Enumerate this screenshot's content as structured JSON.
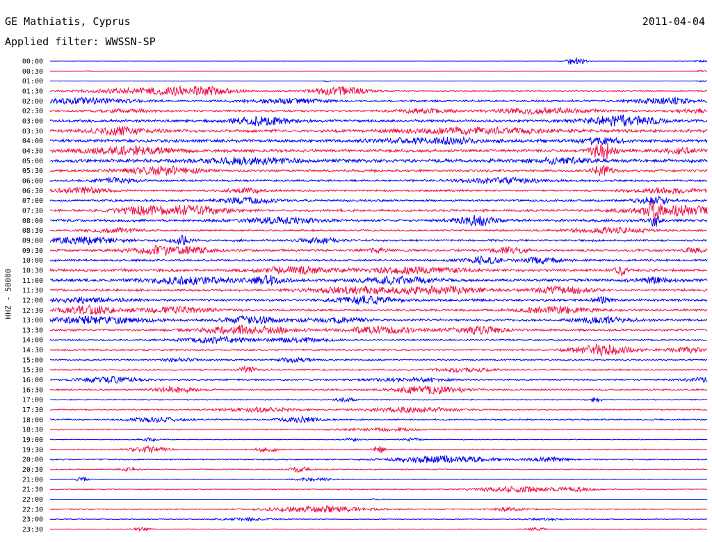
{
  "header": {
    "station": "GE Mathiatis, Cyprus",
    "date": "2011-04-04",
    "filter": "Applied filter: WWSSN-SP"
  },
  "colors": {
    "trace_a": "#0000ee",
    "trace_b": "#ee1144",
    "text": "#000000",
    "background": "#ffffff"
  },
  "chart_data": {
    "type": "line",
    "title": "GE Mathiatis, Cyprus",
    "subtitle": "Applied filter: WWSSN-SP",
    "date": "2011-04-04",
    "ylabel": "HHZ - 50000",
    "xlabel": "",
    "grid": false,
    "row_interval_minutes": 30,
    "row_times": [
      "00:00",
      "00:30",
      "01:00",
      "01:30",
      "02:00",
      "02:30",
      "03:00",
      "03:30",
      "04:00",
      "04:30",
      "05:00",
      "05:30",
      "06:00",
      "06:30",
      "07:00",
      "07:30",
      "08:00",
      "08:30",
      "09:00",
      "09:30",
      "10:00",
      "10:30",
      "11:00",
      "11:30",
      "12:00",
      "12:30",
      "13:00",
      "13:30",
      "14:00",
      "14:30",
      "15:00",
      "15:30",
      "16:00",
      "16:30",
      "17:00",
      "17:30",
      "18:00",
      "18:30",
      "19:00",
      "19:30",
      "20:00",
      "20:30",
      "21:00",
      "21:30",
      "22:00",
      "22:30",
      "23:00",
      "23:30"
    ],
    "trace_colors": [
      "#0000ee",
      "#ee1144"
    ],
    "series": [
      {
        "noise": 0.05,
        "events": [
          [
            0.8,
            1.5,
            0.01
          ],
          [
            0.99,
            0.3,
            0.01
          ]
        ]
      },
      {
        "noise": 0.03,
        "events": [
          [
            0.06,
            0.2,
            0.003
          ],
          [
            0.99,
            0.3,
            0.006
          ]
        ]
      },
      {
        "noise": 0.05,
        "events": [
          [
            0.42,
            0.3,
            0.003
          ],
          [
            0.99,
            0.3,
            0.006
          ]
        ]
      },
      {
        "noise": 0.22,
        "events": [
          [
            0.14,
            0.9,
            0.06
          ],
          [
            0.23,
            1.2,
            0.04
          ],
          [
            0.44,
            1.5,
            0.03
          ]
        ]
      },
      {
        "noise": 0.4,
        "events": [
          [
            0.05,
            0.9,
            0.05
          ],
          [
            0.36,
            0.7,
            0.04
          ],
          [
            0.94,
            1.0,
            0.03
          ]
        ]
      },
      {
        "noise": 0.35,
        "events": [
          [
            0.12,
            0.5,
            0.03
          ],
          [
            0.57,
            0.7,
            0.03
          ],
          [
            0.75,
            1.0,
            0.05
          ],
          [
            0.98,
            0.7,
            0.02
          ]
        ]
      },
      {
        "noise": 0.5,
        "events": [
          [
            0.32,
            1.4,
            0.03
          ],
          [
            0.87,
            1.6,
            0.04
          ]
        ]
      },
      {
        "noise": 0.55,
        "events": [
          [
            0.11,
            1.2,
            0.03
          ],
          [
            0.65,
            0.9,
            0.08
          ]
        ]
      },
      {
        "noise": 0.6,
        "events": [
          [
            0.58,
            1.0,
            0.05
          ],
          [
            0.84,
            1.1,
            0.02
          ]
        ]
      },
      {
        "noise": 0.55,
        "events": [
          [
            0.12,
            1.2,
            0.05
          ],
          [
            0.84,
            3.0,
            0.012
          ],
          [
            0.96,
            0.8,
            0.02
          ]
        ]
      },
      {
        "noise": 0.65,
        "events": [
          [
            0.3,
            1.0,
            0.05
          ],
          [
            0.78,
            0.8,
            0.03
          ]
        ]
      },
      {
        "noise": 0.45,
        "events": [
          [
            0.17,
            1.3,
            0.04
          ],
          [
            0.84,
            1.8,
            0.01
          ]
        ]
      },
      {
        "noise": 0.4,
        "events": [
          [
            0.1,
            0.9,
            0.02
          ],
          [
            0.69,
            0.9,
            0.04
          ]
        ]
      },
      {
        "noise": 0.35,
        "events": [
          [
            0.05,
            1.0,
            0.03
          ],
          [
            0.3,
            0.8,
            0.02
          ],
          [
            0.94,
            0.8,
            0.04
          ]
        ]
      },
      {
        "noise": 0.4,
        "events": [
          [
            0.3,
            0.9,
            0.03
          ],
          [
            0.92,
            1.2,
            0.02
          ]
        ]
      },
      {
        "noise": 0.45,
        "events": [
          [
            0.14,
            1.2,
            0.03
          ],
          [
            0.22,
            1.4,
            0.04
          ],
          [
            0.92,
            3.0,
            0.006
          ],
          [
            0.95,
            1.5,
            0.05
          ]
        ]
      },
      {
        "noise": 0.5,
        "events": [
          [
            0.35,
            1.0,
            0.04
          ],
          [
            0.65,
            1.6,
            0.02
          ],
          [
            0.92,
            2.0,
            0.006
          ]
        ]
      },
      {
        "noise": 0.35,
        "events": [
          [
            0.1,
            0.7,
            0.03
          ],
          [
            0.85,
            0.9,
            0.04
          ]
        ]
      },
      {
        "noise": 0.4,
        "events": [
          [
            0.05,
            1.2,
            0.04
          ],
          [
            0.2,
            1.4,
            0.01
          ],
          [
            0.41,
            0.9,
            0.02
          ]
        ]
      },
      {
        "noise": 0.45,
        "events": [
          [
            0.18,
            1.5,
            0.04
          ],
          [
            0.5,
            0.8,
            0.01
          ],
          [
            0.7,
            0.9,
            0.02
          ],
          [
            0.98,
            0.9,
            0.01
          ]
        ]
      },
      {
        "noise": 0.4,
        "events": [
          [
            0.66,
            1.3,
            0.02
          ],
          [
            0.75,
            1.1,
            0.02
          ]
        ]
      },
      {
        "noise": 0.5,
        "events": [
          [
            0.37,
            1.2,
            0.04
          ],
          [
            0.55,
            1.0,
            0.05
          ],
          [
            0.87,
            1.6,
            0.006
          ]
        ]
      },
      {
        "noise": 0.55,
        "events": [
          [
            0.21,
            1.2,
            0.04
          ],
          [
            0.33,
            1.3,
            0.02
          ],
          [
            0.53,
            1.1,
            0.04
          ],
          [
            0.92,
            0.8,
            0.02
          ]
        ]
      },
      {
        "noise": 0.45,
        "events": [
          [
            0.47,
            1.0,
            0.05
          ],
          [
            0.6,
            1.5,
            0.04
          ],
          [
            0.78,
            1.2,
            0.03
          ]
        ]
      },
      {
        "noise": 0.45,
        "events": [
          [
            0.05,
            0.8,
            0.04
          ],
          [
            0.48,
            1.3,
            0.03
          ],
          [
            0.84,
            1.0,
            0.01
          ]
        ]
      },
      {
        "noise": 0.4,
        "events": [
          [
            0.06,
            1.3,
            0.03
          ],
          [
            0.19,
            1.0,
            0.04
          ],
          [
            0.77,
            1.0,
            0.04
          ]
        ]
      },
      {
        "noise": 0.45,
        "events": [
          [
            0.07,
            1.1,
            0.05
          ],
          [
            0.31,
            1.2,
            0.03
          ],
          [
            0.44,
            0.8,
            0.03
          ],
          [
            0.84,
            0.9,
            0.03
          ]
        ]
      },
      {
        "noise": 0.4,
        "events": [
          [
            0.3,
            1.4,
            0.05
          ],
          [
            0.5,
            1.1,
            0.04
          ],
          [
            0.65,
            1.1,
            0.03
          ]
        ]
      },
      {
        "noise": 0.3,
        "events": [
          [
            0.25,
            1.0,
            0.04
          ],
          [
            0.38,
            0.7,
            0.03
          ]
        ]
      },
      {
        "noise": 0.35,
        "events": [
          [
            0.84,
            1.8,
            0.03
          ],
          [
            0.97,
            0.9,
            0.02
          ]
        ]
      },
      {
        "noise": 0.3,
        "events": [
          [
            0.2,
            0.6,
            0.02
          ],
          [
            0.37,
            0.6,
            0.02
          ]
        ]
      },
      {
        "noise": 0.3,
        "events": [
          [
            0.3,
            1.2,
            0.01
          ],
          [
            0.63,
            0.6,
            0.03
          ]
        ]
      },
      {
        "noise": 0.3,
        "events": [
          [
            0.09,
            1.0,
            0.03
          ],
          [
            0.55,
            0.6,
            0.04
          ],
          [
            0.99,
            0.7,
            0.02
          ]
        ]
      },
      {
        "noise": 0.3,
        "events": [
          [
            0.19,
            1.0,
            0.02
          ],
          [
            0.58,
            1.3,
            0.04
          ]
        ]
      },
      {
        "noise": 0.2,
        "events": [
          [
            0.45,
            0.6,
            0.01
          ],
          [
            0.83,
            0.8,
            0.006
          ]
        ]
      },
      {
        "noise": 0.25,
        "events": [
          [
            0.32,
            0.7,
            0.04
          ],
          [
            0.55,
            0.8,
            0.05
          ]
        ]
      },
      {
        "noise": 0.3,
        "events": [
          [
            0.16,
            0.7,
            0.03
          ],
          [
            0.38,
            0.9,
            0.02
          ]
        ]
      },
      {
        "noise": 0.2,
        "events": [
          [
            0.5,
            0.5,
            0.04
          ]
        ]
      },
      {
        "noise": 0.15,
        "events": [
          [
            0.15,
            0.5,
            0.01
          ],
          [
            0.46,
            0.5,
            0.01
          ],
          [
            0.55,
            0.5,
            0.01
          ]
        ]
      },
      {
        "noise": 0.2,
        "events": [
          [
            0.15,
            1.0,
            0.02
          ],
          [
            0.33,
            1.2,
            0.01
          ],
          [
            0.5,
            1.3,
            0.006
          ]
        ]
      },
      {
        "noise": 0.25,
        "events": [
          [
            0.6,
            1.2,
            0.05
          ],
          [
            0.76,
            0.7,
            0.02
          ]
        ]
      },
      {
        "noise": 0.2,
        "events": [
          [
            0.12,
            0.6,
            0.01
          ],
          [
            0.38,
            1.0,
            0.01
          ]
        ]
      },
      {
        "noise": 0.15,
        "events": [
          [
            0.05,
            0.9,
            0.006
          ],
          [
            0.4,
            0.5,
            0.02
          ]
        ]
      },
      {
        "noise": 0.2,
        "events": [
          [
            0.71,
            1.0,
            0.04
          ],
          [
            0.8,
            0.6,
            0.02
          ]
        ]
      },
      {
        "noise": 0.05,
        "events": [
          [
            0.5,
            0.2,
            0.01
          ]
        ]
      },
      {
        "noise": 0.22,
        "events": [
          [
            0.41,
            1.0,
            0.05
          ],
          [
            0.7,
            0.5,
            0.02
          ]
        ]
      },
      {
        "noise": 0.15,
        "events": [
          [
            0.3,
            0.5,
            0.03
          ],
          [
            0.75,
            0.4,
            0.02
          ]
        ]
      },
      {
        "noise": 0.12,
        "events": [
          [
            0.14,
            0.5,
            0.01
          ],
          [
            0.74,
            0.5,
            0.01
          ]
        ]
      }
    ]
  }
}
